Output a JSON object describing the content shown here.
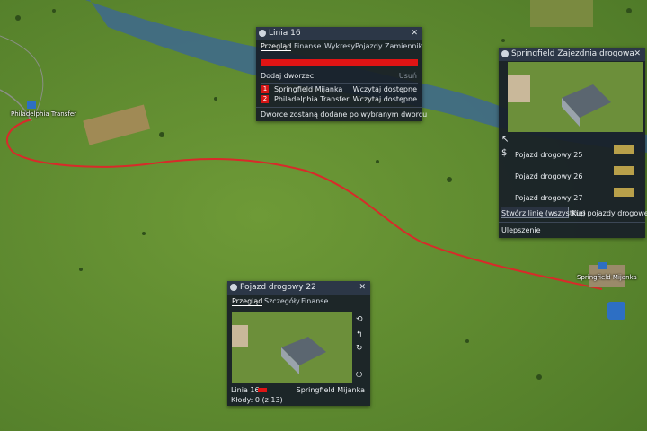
{
  "map_labels": [
    "Philadelphia Transfer",
    "Springfield Mijanka"
  ],
  "line_window": {
    "title": "Linia 16",
    "tabs": [
      "Przegląd",
      "Finanse",
      "Wykresy",
      "Pojazdy",
      "Zamiennik"
    ],
    "add_station": "Dodaj dworzec",
    "remove": "Usuń",
    "stations": [
      {
        "index": 1,
        "name": "Springfield Mijanka",
        "status": "Wczytaj dostępne"
      },
      {
        "index": 2,
        "name": "Philadelphia Transfer",
        "status": "Wczytaj dostępne"
      }
    ],
    "footer": "Dworce zostaną dodane po wybranym dworcu"
  },
  "depot_window": {
    "title": "Springfield Zajezdnia drogowa",
    "vehicles": [
      "Pojazd drogowy 25",
      "Pojazd drogowy 26",
      "Pojazd drogowy 27"
    ],
    "buttons": [
      "Stwórz linię (wszystkie)",
      "Kup pojazdy drogowe"
    ],
    "upgrade": "Ulepszenie"
  },
  "vehicle_window": {
    "title": "Pojazd drogowy 22",
    "tabs": [
      "Przegląd",
      "Szczegóły",
      "Finanse"
    ],
    "line": "Linia 16",
    "station": "Springfield Mijanka",
    "cargo": "Kłody: 0 (z 13)"
  }
}
